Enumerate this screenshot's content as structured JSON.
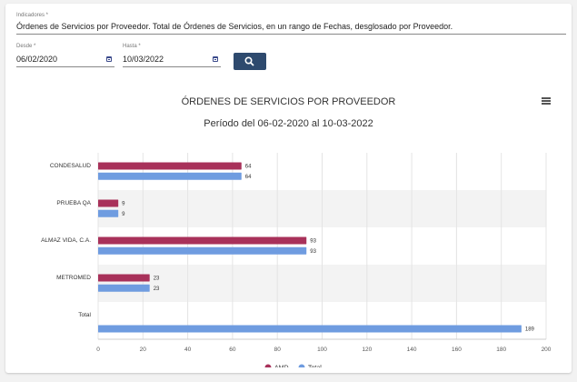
{
  "indicator": {
    "label": "Indicadores *",
    "value": "Órdenes de Servicios por Proveedor. Total de Órdenes de Servicios, en un rango de Fechas, desglosado por Proveedor."
  },
  "filters": {
    "from_label": "Desde *",
    "from_value": "06/02/2020",
    "to_label": "Hasta *",
    "to_value": "10/03/2022"
  },
  "colors": {
    "amd": "#a8315a",
    "total": "#6f9ce0",
    "accent": "#2e4a6e"
  },
  "chart_data": {
    "type": "bar",
    "orientation": "horizontal",
    "title": "ÓRDENES DE SERVICIOS POR PROVEEDOR",
    "subtitle": "Período del 06-02-2020 al 10-03-2022",
    "categories": [
      "CONDESALUD",
      "PRUEBA QA",
      "ALMAZ VIDA, C.A.",
      "METROMED",
      "Total"
    ],
    "series": [
      {
        "name": "AMD",
        "values": [
          64,
          9,
          93,
          23,
          null
        ]
      },
      {
        "name": "Total",
        "values": [
          64,
          9,
          93,
          23,
          189
        ]
      }
    ],
    "xlim": [
      0,
      200
    ],
    "xticks": [
      0,
      20,
      40,
      60,
      80,
      100,
      120,
      140,
      160,
      180,
      200
    ],
    "legend_position": "bottom-center",
    "grid": true
  }
}
